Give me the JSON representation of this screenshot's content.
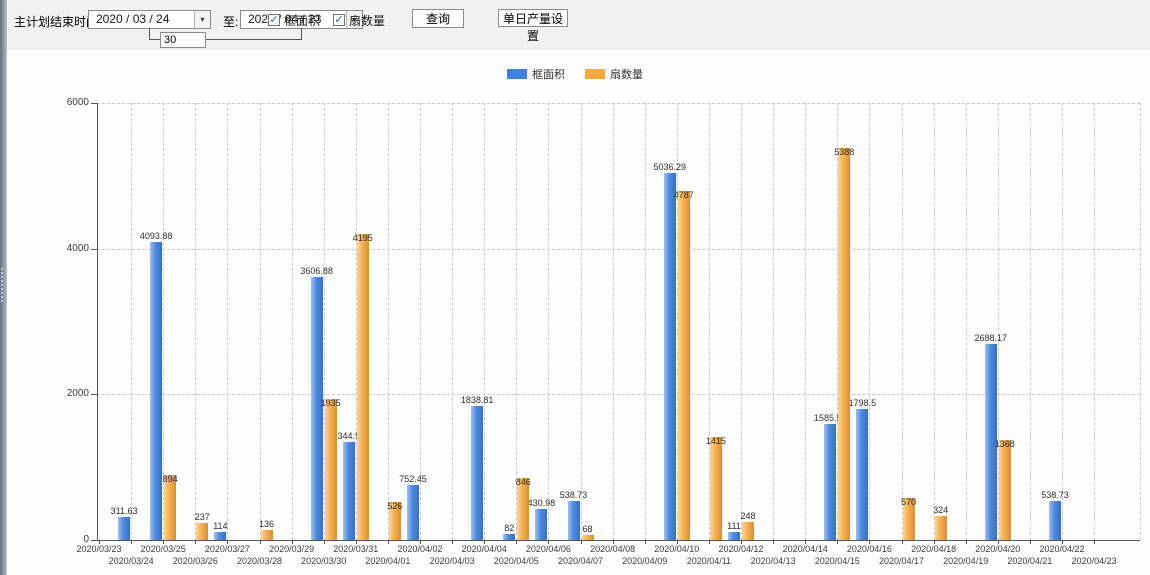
{
  "toolbar": {
    "end_time_label": "主计划结束时间:",
    "date_from": "2020 / 03 / 24",
    "to_label": "至:",
    "date_to": "2020 / 04 / 23",
    "days_value": "30",
    "checkbox_area_label": "框面积",
    "checkbox_fan_label": "扇数量",
    "checkbox_checked_glyph": "✓",
    "dropdown_arrow_glyph": "▾",
    "query_button_label": "查询",
    "daily_output_button_label": "单日产量设置"
  },
  "legend": {
    "items": [
      {
        "label": "框面积",
        "color": "#3f81dd"
      },
      {
        "label": "扇数量",
        "color": "#f5a93e"
      }
    ]
  },
  "colors": {
    "series_area": "#3f81dd",
    "series_fan": "#f5a93e",
    "axis": "#565656",
    "grid": "#c9c9c9"
  },
  "chart_data": {
    "type": "bar",
    "title": "",
    "xlabel": "",
    "ylabel": "",
    "ylim": [
      0,
      6000
    ],
    "yticks": [
      0,
      2000,
      4000,
      6000
    ],
    "grid": "dashed",
    "legend_position": "top",
    "categories": [
      "2020/03/23",
      "2020/03/24",
      "2020/03/25",
      "2020/03/26",
      "2020/03/27",
      "2020/03/28",
      "2020/03/29",
      "2020/03/30",
      "2020/03/31",
      "2020/04/01",
      "2020/04/02",
      "2020/04/03",
      "2020/04/04",
      "2020/04/05",
      "2020/04/06",
      "2020/04/07",
      "2020/04/08",
      "2020/04/09",
      "2020/04/10",
      "2020/04/11",
      "2020/04/12",
      "2020/04/13",
      "2020/04/14",
      "2020/04/15",
      "2020/04/16",
      "2020/04/17",
      "2020/04/18",
      "2020/04/19",
      "2020/04/20",
      "2020/04/21",
      "2020/04/22",
      "2020/04/23"
    ],
    "series": [
      {
        "name": "框面积",
        "id": "frame-area",
        "color": "#3f81dd",
        "values": [
          0,
          311.63,
          4093.88,
          0,
          114,
          0,
          0,
          3606.88,
          1344.95,
          0,
          752.45,
          0,
          1838.81,
          82,
          430.98,
          538.73,
          0,
          0,
          5036.29,
          0,
          111,
          0,
          0,
          1585.96,
          1798.5,
          0,
          0,
          0,
          2688.17,
          0,
          538.73,
          0
        ]
      },
      {
        "name": "扇数量",
        "id": "fan-count",
        "color": "#f5a93e",
        "values": [
          0,
          0,
          894,
          237,
          0,
          136,
          0,
          1935,
          4195,
          526,
          0,
          0,
          0,
          846,
          0,
          68,
          0,
          0,
          4787,
          1415,
          248,
          0,
          0,
          5388,
          0,
          570,
          324,
          0,
          1368,
          0,
          0,
          0
        ]
      }
    ]
  }
}
